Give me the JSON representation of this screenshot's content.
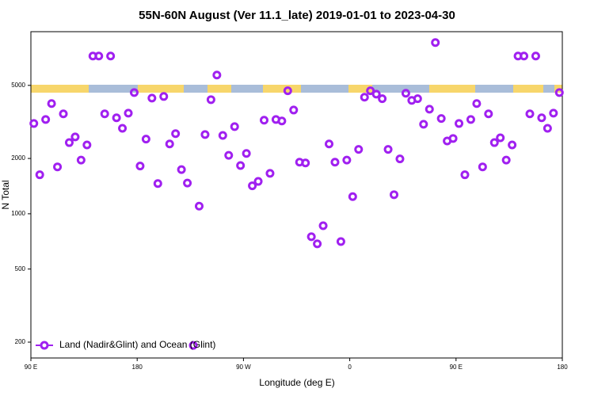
{
  "chart_data": {
    "type": "scatter",
    "title": "55N-60N August (Ver 11.1_late)   2019-01-01 to 2023-04-30",
    "x_label": "Longitude (deg E)",
    "y_label": "N Total",
    "log_y": true,
    "legend": "lower left",
    "xlim": [
      90,
      540
    ],
    "xticks": [
      {
        "value": 90,
        "label": "90 E"
      },
      {
        "value": 180,
        "label": "180"
      },
      {
        "value": 270,
        "label": "90 W"
      },
      {
        "value": 360,
        "label": "0"
      },
      {
        "value": 450,
        "label": "90 E"
      },
      {
        "value": 540,
        "label": "180"
      }
    ],
    "ylim": [
      164,
      9800
    ],
    "yticks": [
      200,
      500,
      1000,
      2000,
      5000
    ],
    "series": [
      {
        "name": "Land (Nadir&Glint) and Ocean (Glint)",
        "color": "#a020f0",
        "x": [
          92.5,
          97.5,
          102.5,
          107.5,
          112.5,
          117.5,
          122.5,
          127.5,
          132.5,
          137.5,
          142.5,
          147.5,
          152.5,
          157.5,
          162.5,
          167.5,
          172.5,
          177.5,
          182.5,
          187.5,
          192.5,
          197.5,
          202.5,
          207.5,
          212.5,
          217.5,
          222.5,
          227.5,
          232.5,
          237.5,
          242.5,
          247.5,
          252.5,
          257.5,
          262.5,
          267.5,
          272.5,
          277.5,
          282.5,
          287.5,
          292.5,
          297.5,
          302.5,
          307.5,
          312.5,
          317.5,
          322.5,
          327.5,
          332.5,
          337.5,
          342.5,
          347.5,
          352.5,
          357.5,
          362.5,
          367.5,
          372.5,
          377.5,
          382.5,
          387.5,
          392.5,
          397.5,
          402.5,
          407.5,
          412.5,
          417.5,
          422.5,
          427.5,
          432.5,
          437.5,
          442.5,
          447.5,
          452.5,
          457.5,
          462.5,
          467.5,
          472.5,
          477.5,
          482.5,
          487.5,
          492.5,
          497.5,
          502.5,
          507.5,
          512.5,
          517.5,
          522.5,
          527.5,
          532.5,
          537.5
        ],
        "values": [
          3100,
          1630,
          3260,
          3980,
          1800,
          3500,
          2440,
          2620,
          1960,
          2370,
          7220,
          7220,
          3500,
          7220,
          3330,
          2920,
          3530,
          4570,
          1820,
          2550,
          4260,
          1460,
          4350,
          2400,
          2730,
          1740,
          1470,
          192,
          1100,
          2700,
          4180,
          5690,
          2670,
          2080,
          2980,
          1830,
          2130,
          1420,
          1500,
          3230,
          1660,
          3260,
          3200,
          4670,
          3670,
          1910,
          1890,
          750,
          686,
          861,
          2400,
          1910,
          706,
          1960,
          1240,
          2240,
          4310,
          4670,
          4480,
          4230,
          2240,
          1270,
          1990,
          4530,
          4140,
          4230,
          3070,
          3710,
          8550,
          3300,
          2490,
          2570,
          3100,
          1630,
          3260,
          3980,
          1800,
          3500,
          2440,
          2590,
          1960,
          2370,
          7220,
          7220,
          3500,
          7220,
          3330,
          2920,
          3530,
          4570
        ]
      }
    ]
  }
}
